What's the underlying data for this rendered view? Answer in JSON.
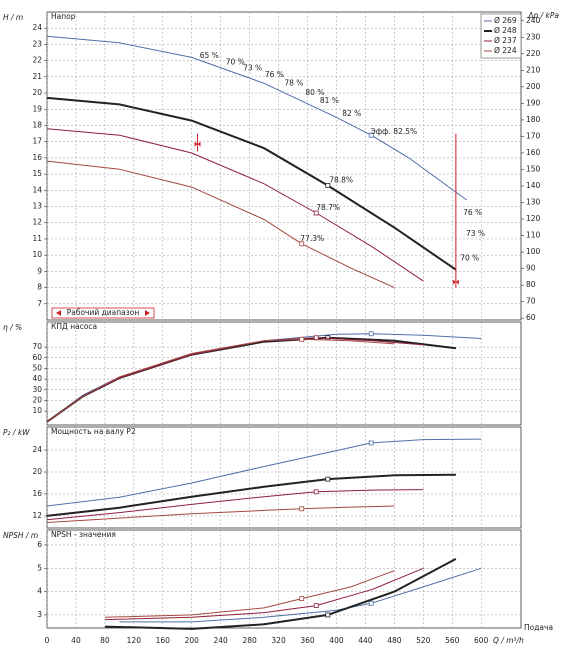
{
  "chart_data": [
    {
      "type": "line",
      "title": "Напор",
      "ylabel": "H / m",
      "y2label": "Δp / kPa",
      "grid": true,
      "legend": "upper right",
      "xlim": [
        0,
        655
      ],
      "xticks": [
        0,
        40,
        80,
        120,
        160,
        200,
        240,
        280,
        320,
        360,
        400,
        440,
        480,
        520,
        560,
        600
      ],
      "ylim": [
        6,
        25
      ],
      "yticks": [
        7,
        8,
        9,
        10,
        11,
        12,
        13,
        14,
        15,
        16,
        17,
        18,
        19,
        20,
        21,
        22,
        23,
        24
      ],
      "y2lim": [
        58.9,
        245.3
      ],
      "y2ticks": [
        60,
        70,
        80,
        90,
        100,
        110,
        120,
        130,
        140,
        150,
        160,
        170,
        180,
        190,
        200,
        210,
        220,
        230,
        240
      ],
      "series": [
        {
          "name": "Ø 269",
          "color": "#4f6fa8",
          "width": 1,
          "best_point": 5,
          "x": [
            0,
            100,
            200,
            300,
            400,
            448,
            500,
            580
          ],
          "values": [
            23.5,
            23.1,
            22.2,
            20.6,
            18.5,
            17.4,
            16.0,
            13.4
          ]
        },
        {
          "name": "Ø 248",
          "color": "#222222",
          "width": 2,
          "best_point": 4,
          "x": [
            0,
            100,
            200,
            300,
            388,
            480,
            565
          ],
          "values": [
            19.7,
            19.3,
            18.3,
            16.6,
            14.3,
            11.7,
            9.1
          ]
        },
        {
          "name": "Ø 237",
          "color": "#8e1f3c",
          "width": 1,
          "best_point": 4,
          "x": [
            0,
            100,
            200,
            300,
            372,
            450,
            520
          ],
          "values": [
            17.8,
            17.4,
            16.3,
            14.4,
            12.6,
            10.5,
            8.4
          ]
        },
        {
          "name": "Ø 224",
          "color": "#a4483e",
          "width": 1,
          "best_point": 4,
          "x": [
            0,
            100,
            200,
            300,
            352,
            420,
            480
          ],
          "values": [
            15.8,
            15.3,
            14.2,
            12.2,
            10.7,
            9.2,
            8.0
          ]
        }
      ],
      "annotations": [
        {
          "text": "65 %",
          "x": 211,
          "y": 22.3,
          "color": "#222222"
        },
        {
          "text": "70 %",
          "x": 247,
          "y": 21.9,
          "color": "#222222"
        },
        {
          "text": "73 %",
          "x": 271,
          "y": 21.5,
          "color": "#222222"
        },
        {
          "text": "76 %",
          "x": 301,
          "y": 21.1,
          "color": "#222222"
        },
        {
          "text": "78 %",
          "x": 328,
          "y": 20.6,
          "color": "#222222"
        },
        {
          "text": "80 %",
          "x": 357,
          "y": 20.0,
          "color": "#222222"
        },
        {
          "text": "81 %",
          "x": 377,
          "y": 19.5,
          "color": "#222222"
        },
        {
          "text": "82 %",
          "x": 408,
          "y": 18.7,
          "color": "#222222"
        },
        {
          "text": "Эфф. 82.5%",
          "x": 447,
          "y": 17.6,
          "color": "#4f6fa8"
        },
        {
          "text": "78.8%",
          "x": 390,
          "y": 14.6,
          "color": "#222222"
        },
        {
          "text": "78.7%",
          "x": 372,
          "y": 12.9,
          "color": "#c0203c"
        },
        {
          "text": "77.3%",
          "x": 350,
          "y": 11.0,
          "color": "#a4483e"
        },
        {
          "text": "76 %",
          "x": 575,
          "y": 12.6,
          "color": "#222222"
        },
        {
          "text": "73 %",
          "x": 579,
          "y": 11.3,
          "color": "#222222"
        },
        {
          "text": "70 %",
          "x": 571,
          "y": 9.8,
          "color": "#222222"
        }
      ],
      "operating_range": {
        "label": "Рабочий диапазон",
        "x": [
          208,
          565
        ],
        "color": "#d0202a"
      }
    },
    {
      "type": "line",
      "title": "КПД насоса",
      "ylabel": "η / %",
      "grid": true,
      "xlim": [
        0,
        655
      ],
      "xticks": [
        0,
        40,
        80,
        120,
        160,
        200,
        240,
        280,
        320,
        360,
        400,
        440,
        480,
        520,
        560,
        600
      ],
      "ylim": [
        -3,
        93.5
      ],
      "yticks": [
        10,
        20,
        30,
        40,
        50,
        60,
        70
      ],
      "series": [
        {
          "name": "Ø 269",
          "color": "#4f6fa8",
          "width": 1,
          "best_point": 6,
          "x": [
            0,
            50,
            100,
            200,
            300,
            400,
            448,
            520,
            600
          ],
          "values": [
            0,
            25,
            42,
            63,
            76,
            82,
            82.5,
            81,
            78
          ]
        },
        {
          "name": "Ø 248",
          "color": "#222222",
          "width": 2,
          "best_point": 5,
          "x": [
            0,
            50,
            100,
            200,
            300,
            388,
            480,
            565
          ],
          "values": [
            0,
            24,
            41,
            63,
            75,
            78.8,
            76,
            69
          ]
        },
        {
          "name": "Ø 237",
          "color": "#8e1f3c",
          "width": 1,
          "best_point": 5,
          "x": [
            0,
            50,
            100,
            200,
            300,
            372,
            450,
            520
          ],
          "values": [
            0,
            24,
            41,
            63,
            76,
            78.7,
            76,
            72
          ]
        },
        {
          "name": "Ø 224",
          "color": "#a4483e",
          "width": 1,
          "best_point": 5,
          "x": [
            0,
            50,
            100,
            200,
            300,
            352,
            420,
            480
          ],
          "values": [
            0,
            24,
            42,
            64,
            76,
            77.3,
            76,
            73
          ]
        }
      ]
    },
    {
      "type": "line",
      "title": "Мощность на валу P2",
      "ylabel": "P₂ / kW",
      "grid": true,
      "xlim": [
        0,
        655
      ],
      "xticks": [
        0,
        40,
        80,
        120,
        160,
        200,
        240,
        280,
        320,
        360,
        400,
        440,
        480,
        520,
        560,
        600
      ],
      "ylim": [
        9.8,
        28.2
      ],
      "yticks": [
        12,
        16,
        20,
        24
      ],
      "series": [
        {
          "name": "Ø 269",
          "color": "#4f6fa8",
          "width": 1,
          "best_point": 5,
          "x": [
            0,
            100,
            200,
            300,
            400,
            448,
            520,
            600
          ],
          "values": [
            13.8,
            15.4,
            18.0,
            21.0,
            23.9,
            25.3,
            25.9,
            26.0
          ]
        },
        {
          "name": "Ø 248",
          "color": "#222222",
          "width": 2,
          "best_point": 4,
          "x": [
            0,
            100,
            200,
            300,
            388,
            480,
            565
          ],
          "values": [
            12.0,
            13.5,
            15.5,
            17.3,
            18.7,
            19.4,
            19.5
          ]
        },
        {
          "name": "Ø 237",
          "color": "#8e1f3c",
          "width": 1,
          "best_point": 4,
          "x": [
            0,
            100,
            200,
            300,
            372,
            450,
            520
          ],
          "values": [
            11.3,
            12.6,
            14.1,
            15.5,
            16.4,
            16.7,
            16.8
          ]
        },
        {
          "name": "Ø 224",
          "color": "#a4483e",
          "width": 1,
          "best_point": 4,
          "x": [
            0,
            100,
            200,
            300,
            352,
            420,
            480
          ],
          "values": [
            10.8,
            11.6,
            12.4,
            13.0,
            13.3,
            13.6,
            13.8
          ]
        }
      ]
    },
    {
      "type": "line",
      "title": "NPSH - значения",
      "ylabel": "NPSH / m",
      "xlabel": "Q / m³/h",
      "xlabel2": "Подача",
      "grid": true,
      "xlim": [
        0,
        655
      ],
      "xticks": [
        0,
        40,
        80,
        120,
        160,
        200,
        240,
        280,
        320,
        360,
        400,
        440,
        480,
        520,
        560,
        600
      ],
      "ylim": [
        2.44,
        6.64
      ],
      "yticks": [
        3,
        4,
        5,
        6
      ],
      "series": [
        {
          "name": "Ø 269",
          "color": "#4f6fa8",
          "width": 1,
          "best_point": 4,
          "x": [
            100,
            200,
            300,
            400,
            448,
            520,
            600
          ],
          "values": [
            2.7,
            2.7,
            2.9,
            3.2,
            3.5,
            4.2,
            5.0
          ]
        },
        {
          "name": "Ø 248",
          "color": "#222222",
          "width": 2,
          "best_point": 3,
          "x": [
            80,
            200,
            300,
            388,
            480,
            565
          ],
          "values": [
            2.5,
            2.4,
            2.6,
            3.0,
            4.0,
            5.4
          ]
        },
        {
          "name": "Ø 237",
          "color": "#8e1f3c",
          "width": 1,
          "best_point": 3,
          "x": [
            80,
            200,
            300,
            372,
            450,
            520
          ],
          "values": [
            2.8,
            2.9,
            3.1,
            3.4,
            4.1,
            5.0
          ]
        },
        {
          "name": "Ø 224",
          "color": "#a4483e",
          "width": 1,
          "best_point": 3,
          "x": [
            80,
            200,
            300,
            352,
            420,
            480
          ],
          "values": [
            2.9,
            3.0,
            3.3,
            3.7,
            4.2,
            4.9
          ]
        }
      ]
    }
  ]
}
